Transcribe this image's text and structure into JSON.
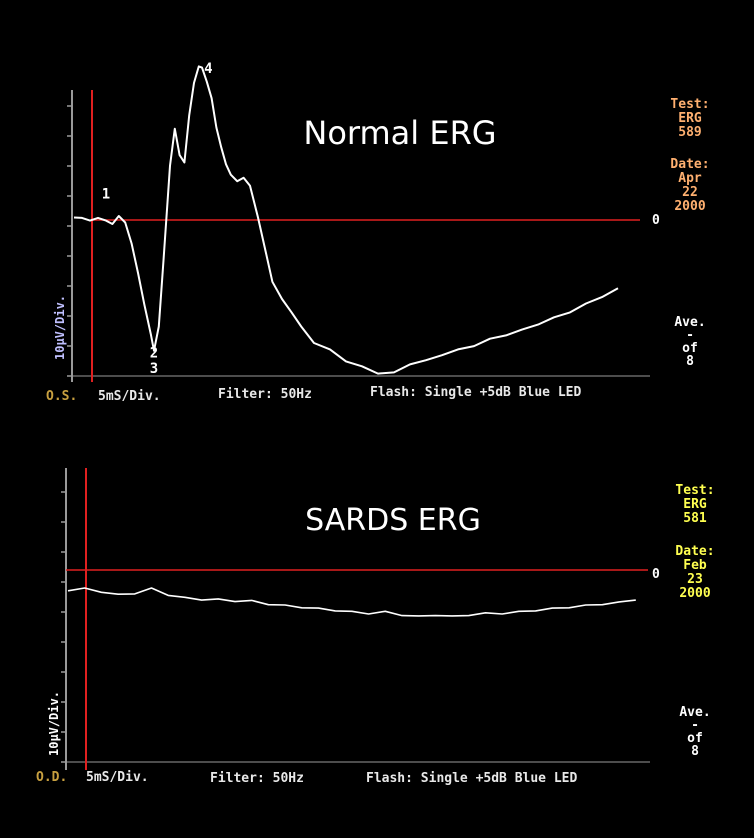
{
  "colors": {
    "background": "#000000",
    "trace": "#ffffff",
    "baseline": "#e02020",
    "axis": "#9a9a9a",
    "eye_label": "#c8a040",
    "footer_text": "#e8e8e8",
    "ylabel": "#c0c0ff",
    "info_orange": "#ffb070",
    "info_yellow": "#ffff50"
  },
  "chart_data": [
    {
      "type": "line",
      "title": "Normal ERG",
      "ylabel": "10µV/Div.",
      "eye": "O.S.",
      "footer": [
        "5mS/Div.",
        "Filter: 50Hz",
        "Flash: Single +5dB Blue LED"
      ],
      "zero_label": "0",
      "info": {
        "test_label": "Test:",
        "test_lines": [
          "ERG",
          "589"
        ],
        "date_label": "Date:",
        "date_lines": [
          "Apr",
          "22",
          "2000"
        ],
        "ave_lines": [
          "Ave.",
          "-",
          "of",
          "8"
        ]
      },
      "peak_labels": [
        {
          "text": "1",
          "x": 2.0,
          "y": 1.4
        },
        {
          "text": "4",
          "x": 8.4,
          "y": 9.6
        },
        {
          "text": "2",
          "x": 5.0,
          "y": -9.0
        },
        {
          "text": "3",
          "x": 5.0,
          "y": -10.0
        }
      ],
      "series": [
        {
          "x": [
            0,
            0.5,
            1.0,
            1.5,
            2.0,
            2.4,
            2.8,
            3.2,
            3.6,
            4.0,
            4.4,
            4.8,
            5.0,
            5.3,
            5.6,
            6.0,
            6.3,
            6.6,
            6.9,
            7.2,
            7.5,
            7.8,
            8.0,
            8.3,
            8.6,
            8.9,
            9.2,
            9.5,
            9.8,
            10.2,
            10.6,
            11.0,
            11.5,
            12.0,
            12.4,
            13.0,
            13.6,
            14.2,
            15.0,
            16.0,
            17.0,
            18.0,
            19.0,
            20.0,
            21.0,
            22.0,
            23.0,
            24.0,
            25.0,
            26.0,
            27.0,
            28.0,
            29.0,
            30.0,
            31.0,
            32.0,
            33.0,
            34.0
          ],
          "y": [
            0.2,
            0.1,
            0.0,
            0.1,
            0.0,
            -0.3,
            0.3,
            -0.2,
            -1.5,
            -3.5,
            -5.5,
            -7.5,
            -8.5,
            -7.0,
            -2.5,
            3.5,
            6.0,
            4.2,
            3.8,
            6.8,
            9.0,
            10.0,
            10.0,
            9.0,
            8.0,
            6.0,
            4.8,
            3.6,
            3.0,
            2.5,
            2.8,
            2.2,
            0.2,
            -2.2,
            -4.0,
            -5.2,
            -6.0,
            -7.0,
            -8.0,
            -8.5,
            -9.2,
            -9.6,
            -10.0,
            -10.0,
            -9.4,
            -9.2,
            -8.8,
            -8.5,
            -8.2,
            -7.8,
            -7.5,
            -7.2,
            -6.8,
            -6.4,
            -6.0,
            -5.5,
            -5.0,
            -4.5
          ]
        }
      ]
    },
    {
      "type": "line",
      "title": "SARDS ERG",
      "ylabel": "10µV/Div.",
      "eye": "O.D.",
      "footer": [
        "5mS/Div.",
        "Filter: 50Hz",
        "Flash: Single +5dB Blue LED"
      ],
      "zero_label": "0",
      "info": {
        "test_label": "Test:",
        "test_lines": [
          "ERG",
          "581"
        ],
        "date_label": "Date:",
        "date_lines": [
          "Feb",
          "23",
          "2000"
        ],
        "ave_lines": [
          "Ave.",
          "-",
          "of",
          "8"
        ]
      },
      "peak_labels": [],
      "series": [
        {
          "x": [
            0,
            1,
            2,
            3,
            4,
            5,
            6,
            7,
            8,
            9,
            10,
            11,
            12,
            13,
            14,
            15,
            16,
            17,
            18,
            19,
            20,
            21,
            22,
            23,
            24,
            25,
            26,
            27,
            28,
            29,
            30,
            31,
            32,
            33,
            34
          ],
          "y": [
            -1.3,
            -1.2,
            -1.4,
            -1.6,
            -1.5,
            -1.2,
            -1.6,
            -1.8,
            -1.9,
            -1.9,
            -2.0,
            -2.0,
            -2.2,
            -2.3,
            -2.4,
            -2.5,
            -2.6,
            -2.7,
            -2.8,
            -2.7,
            -2.9,
            -3.0,
            -2.9,
            -3.0,
            -2.9,
            -2.8,
            -2.8,
            -2.7,
            -2.6,
            -2.5,
            -2.4,
            -2.3,
            -2.2,
            -2.1,
            -1.9
          ]
        }
      ]
    }
  ]
}
